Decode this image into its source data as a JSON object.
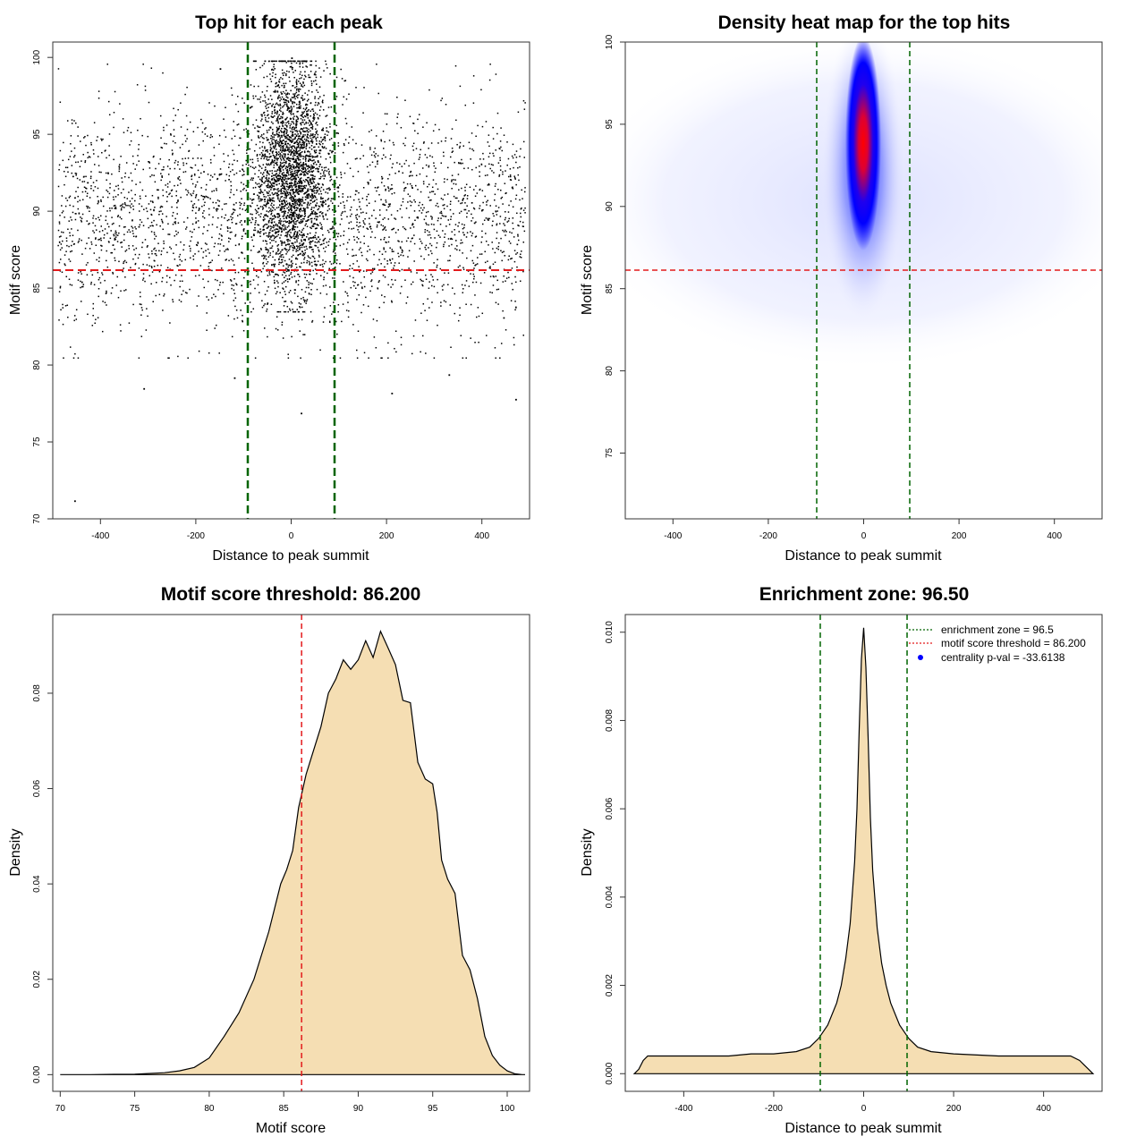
{
  "chart_data": [
    {
      "type": "scatter",
      "title": "Top hit for each peak",
      "xlabel": "Distance to peak summit",
      "ylabel": "Motif score",
      "xlim": [
        -500,
        500
      ],
      "ylim": [
        70,
        101
      ],
      "xticks": [
        "-400",
        "-200",
        "0",
        "200",
        "400"
      ],
      "yticks": [
        "70",
        "75",
        "80",
        "85",
        "90",
        "95",
        "100"
      ],
      "point_color": "#000000",
      "sample_points": {
        "x": [
          -455,
          -310,
          -120,
          20,
          5,
          -30,
          45,
          60,
          210,
          330,
          470,
          -150,
          0
        ],
        "y": [
          71.2,
          78.5,
          79.2,
          76.9,
          99.8,
          98.2,
          96.1,
          94.0,
          78.2,
          79.4,
          77.8,
          99.3,
          100.0
        ]
      },
      "reference_lines": {
        "vertical": [
          -96.5,
          96.5
        ],
        "vertical_color": "#006400",
        "horizontal": 86.2,
        "horizontal_color": "#e31a1c"
      },
      "grid": false
    },
    {
      "type": "heatmap",
      "title": "Density heat map for the top hits",
      "xlabel": "Distance to peak summit",
      "ylabel": "Motif score",
      "xlim": [
        -500,
        500
      ],
      "ylim": [
        71,
        100
      ],
      "xticks": [
        "-400",
        "-200",
        "0",
        "200",
        "400"
      ],
      "yticks": [
        "75",
        "80",
        "85",
        "90",
        "95",
        "100"
      ],
      "colors": {
        "low": "#ffffff",
        "mid": "#0000ff",
        "high": "#ff0000"
      },
      "hotspot": {
        "x": 0,
        "y": 94
      },
      "reference_lines": {
        "vertical": [
          -96.5,
          96.5
        ],
        "vertical_color": "#006400",
        "horizontal": 86.2,
        "horizontal_color": "#e31a1c"
      },
      "grid": false
    },
    {
      "type": "area",
      "title": "Motif score threshold: 86.200",
      "xlabel": "Motif score",
      "ylabel": "Density",
      "xlim": [
        69.5,
        101.5
      ],
      "ylim": [
        -0.0035,
        0.0965
      ],
      "xticks": [
        "70",
        "75",
        "80",
        "85",
        "90",
        "95",
        "100"
      ],
      "yticks": [
        "0.00",
        "0.02",
        "0.04",
        "0.06",
        "0.08"
      ],
      "fill_color": "#f5deb3",
      "x": [
        70,
        72,
        75,
        77,
        78,
        79,
        80,
        81,
        82,
        83,
        84,
        84.8,
        85.2,
        85.6,
        86,
        86.5,
        87,
        87.5,
        88,
        88.5,
        89,
        89.5,
        90,
        90.5,
        91,
        91.5,
        92,
        92.5,
        93,
        93.5,
        94,
        94.5,
        95,
        95.3,
        95.6,
        96,
        96.5,
        97,
        97.5,
        98,
        98.5,
        99,
        99.5,
        100,
        100.5,
        101,
        101.2
      ],
      "y": [
        0.0,
        0.0,
        0.0001,
        0.0004,
        0.0008,
        0.0015,
        0.0035,
        0.008,
        0.013,
        0.02,
        0.03,
        0.04,
        0.043,
        0.047,
        0.056,
        0.063,
        0.068,
        0.073,
        0.08,
        0.083,
        0.087,
        0.085,
        0.087,
        0.091,
        0.0875,
        0.093,
        0.0895,
        0.086,
        0.0785,
        0.078,
        0.0655,
        0.062,
        0.061,
        0.055,
        0.045,
        0.041,
        0.038,
        0.025,
        0.022,
        0.016,
        0.008,
        0.004,
        0.002,
        0.0008,
        0.0002,
        0.0,
        0.0
      ],
      "threshold": 86.2,
      "threshold_color": "#e31a1c",
      "grid": false
    },
    {
      "type": "area",
      "title": "Enrichment zone: 96.50",
      "xlabel": "Distance to peak summit",
      "ylabel": "Density",
      "xlim": [
        -530,
        530
      ],
      "ylim": [
        -0.0004,
        0.0104
      ],
      "xticks": [
        "-400",
        "-200",
        "0",
        "200",
        "400"
      ],
      "yticks": [
        "0.000",
        "0.002",
        "0.004",
        "0.006",
        "0.008",
        "0.010"
      ],
      "fill_color": "#f5deb3",
      "x": [
        -510,
        -500,
        -490,
        -480,
        -460,
        -400,
        -300,
        -250,
        -200,
        -150,
        -120,
        -100,
        -80,
        -60,
        -50,
        -40,
        -30,
        -20,
        -15,
        -10,
        -5,
        0,
        5,
        10,
        15,
        20,
        30,
        40,
        50,
        60,
        80,
        100,
        120,
        150,
        200,
        300,
        400,
        460,
        480,
        490,
        500,
        510
      ],
      "y": [
        0.0,
        0.0001,
        0.0003,
        0.0004,
        0.0004,
        0.0004,
        0.0004,
        0.00045,
        0.00045,
        0.0005,
        0.0006,
        0.0008,
        0.0011,
        0.0016,
        0.002,
        0.0026,
        0.0034,
        0.0048,
        0.006,
        0.0078,
        0.0094,
        0.0101,
        0.0092,
        0.0076,
        0.0058,
        0.0046,
        0.0033,
        0.0025,
        0.002,
        0.0016,
        0.0011,
        0.0008,
        0.0006,
        0.0005,
        0.00045,
        0.0004,
        0.0004,
        0.0004,
        0.0003,
        0.0002,
        0.0001,
        0.0
      ],
      "enrichment_lines": [
        -96.5,
        96.5
      ],
      "line_color": "#006400",
      "legend": {
        "placement": "top-right",
        "items": [
          {
            "label": "enrichment zone = 96.5",
            "color": "#006400",
            "symbol": "dotted-line"
          },
          {
            "label": "motif score threshold = 86.200",
            "color": "#e31a1c",
            "symbol": "dotted-line"
          },
          {
            "label": "centrality p-val = -33.6138",
            "color": "#0000ff",
            "symbol": "dot"
          }
        ]
      },
      "grid": false
    }
  ]
}
